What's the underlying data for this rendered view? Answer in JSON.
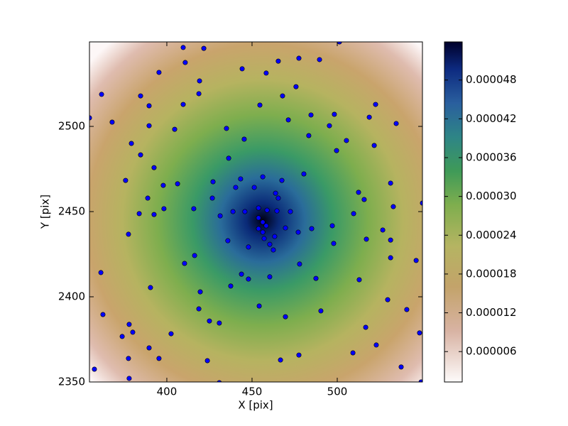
{
  "chart_data": {
    "type": "scatter",
    "xlabel": "X [pix]",
    "ylabel": "Y [pix]",
    "xlim": [
      354.6,
      550
    ],
    "ylim": [
      2350,
      2549.6
    ],
    "xticks": [
      400,
      450,
      500
    ],
    "yticks": [
      2350,
      2400,
      2450,
      2500
    ],
    "color": "#0000ff",
    "x": [
      409.6,
      421.7,
      410.8,
      395.4,
      361.7,
      384.6,
      419.2,
      418.8,
      389.6,
      409.6,
      354.6,
      367.9,
      389.6,
      404.6,
      379.2,
      384.6,
      392.5,
      375.8,
      397.9,
      406.3,
      388.8,
      383.8,
      392.5,
      398.3,
      377.5,
      361.3,
      362.5,
      390.4,
      410.4,
      416.3,
      415.8,
      427.1,
      426.7,
      431.3,
      435.8,
      435,
      436.3,
      445.4,
      444.2,
      454.6,
      458.3,
      465.4,
      477.5,
      489.6,
      501.3,
      475.8,
      467.9,
      471.3,
      484.6,
      498.3,
      495.4,
      483.3,
      505.4,
      499.6,
      518.8,
      522.5,
      521.7,
      534.6,
      480.4,
      456.3,
      467.5,
      443.3,
      440.4,
      451.3,
      463.8,
      465.4,
      531.3,
      512.5,
      515.8,
      532.9,
      550,
      509.6,
      497.1,
      526.7,
      531.3,
      517.1,
      497.9,
      531.3,
      546.3,
      472.5,
      464.6,
      458.8,
      453.8,
      445.8,
      438.8,
      485,
      477.1,
      469.6,
      463.3,
      456.3,
      453.8,
      457.1,
      460.4,
      462.5,
      447.9,
      477.9,
      443.8,
      447.9,
      460.4,
      487.5,
      512.9,
      437.5,
      419.6,
      418.8,
      454.2,
      469.6,
      490.4,
      529.6,
      540.8,
      425,
      430.8,
      377.9,
      380,
      373.8,
      402.5,
      516.7,
      548.3,
      522.9,
      509.2,
      477.5,
      389.6,
      377.5,
      395.4,
      423.8,
      466.7,
      357.5,
      377.9,
      430.8,
      537.5,
      549.2,
      456.3,
      453.8,
      458.3
    ],
    "y": [
      2546.3,
      2545.8,
      2537.5,
      2531.7,
      2518.8,
      2517.9,
      2526.7,
      2519.2,
      2512.1,
      2512.9,
      2505,
      2502.5,
      2500.4,
      2498.3,
      2490,
      2483.3,
      2475.8,
      2468.3,
      2465.4,
      2466.3,
      2457.9,
      2448.8,
      2448.3,
      2451.7,
      2436.7,
      2414.2,
      2389.6,
      2405.4,
      2419.6,
      2424.2,
      2451.7,
      2467.5,
      2457.9,
      2447.5,
      2432.9,
      2498.8,
      2481.3,
      2492.5,
      2533.8,
      2512.5,
      2531.3,
      2538.3,
      2540,
      2539.2,
      2549.6,
      2523.3,
      2517.9,
      2503.8,
      2506.7,
      2507.1,
      2500.4,
      2494.6,
      2491.7,
      2485.8,
      2505.4,
      2512.9,
      2488.8,
      2501.7,
      2472.1,
      2470.4,
      2468.3,
      2469.2,
      2464.2,
      2464.2,
      2460.8,
      2457.9,
      2466.7,
      2461.3,
      2457.1,
      2452.9,
      2455,
      2448.8,
      2441.7,
      2439.2,
      2433.3,
      2433.8,
      2431.3,
      2422.9,
      2421.3,
      2450,
      2450.4,
      2450.8,
      2452.1,
      2450,
      2450,
      2440,
      2437.9,
      2440.4,
      2435.4,
      2437.9,
      2440,
      2434.2,
      2430.8,
      2427.5,
      2429.2,
      2419.2,
      2413.3,
      2410.4,
      2411.7,
      2410.8,
      2410,
      2406.3,
      2402.9,
      2392.9,
      2394.6,
      2388.3,
      2391.7,
      2398.3,
      2392.5,
      2385.8,
      2384.6,
      2383.8,
      2379.2,
      2376.7,
      2378.3,
      2382.1,
      2378.8,
      2371.7,
      2367.1,
      2365.8,
      2370,
      2363.8,
      2363.8,
      2362.5,
      2362.9,
      2357.5,
      2352.1,
      2349.6,
      2358.8,
      2350,
      2443.8,
      2446.3,
      2441.7
    ],
    "colorbar": {
      "clim": [
        1.3e-06,
        5.39e-05
      ],
      "ticks": [
        {
          "value": 6e-06,
          "label": "0.000006"
        },
        {
          "value": 1.2e-05,
          "label": "0.000012"
        },
        {
          "value": 1.8e-05,
          "label": "0.000018"
        },
        {
          "value": 2.4e-05,
          "label": "0.000024"
        },
        {
          "value": 3e-05,
          "label": "0.000030"
        },
        {
          "value": 3.6e-05,
          "label": "0.000036"
        },
        {
          "value": 4.2e-05,
          "label": "0.000042"
        },
        {
          "value": 4.8e-05,
          "label": "0.000048"
        }
      ]
    }
  }
}
